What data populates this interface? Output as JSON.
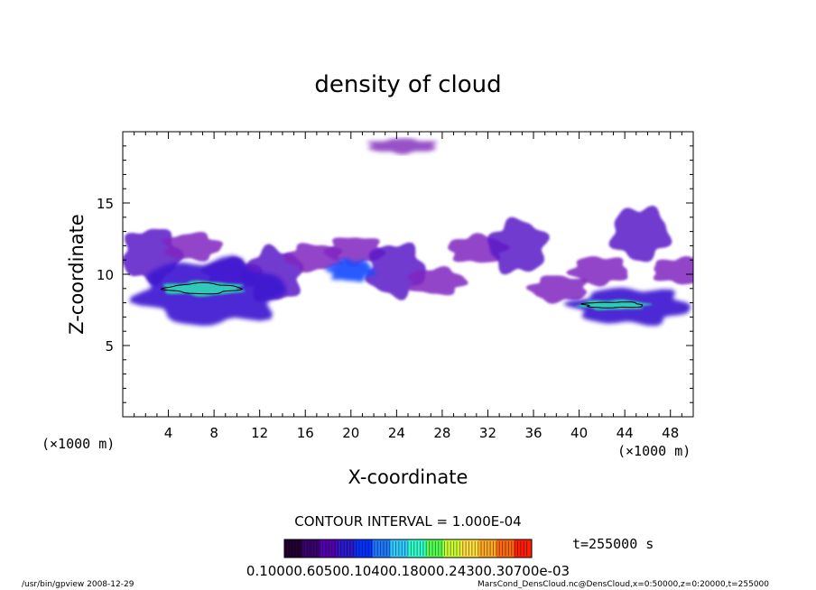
{
  "chart_data": {
    "type": "heatmap",
    "title": "density of cloud",
    "xlabel": "X-coordinate",
    "ylabel": "Z-coordinate",
    "x_unit": "(×1000 m)",
    "y_unit": "(×1000 m)",
    "xlim": [
      0,
      50
    ],
    "ylim": [
      0,
      20
    ],
    "x_ticks": [
      "4",
      "8",
      "12",
      "16",
      "20",
      "24",
      "28",
      "32",
      "36",
      "40",
      "44",
      "48"
    ],
    "y_ticks": [
      "5",
      "10",
      "15"
    ],
    "contour_interval": "CONTOUR INTERVAL = 1.000E-04",
    "time_label": "t=255000 s",
    "colorbar_labels": "0.10000.60500.10400.18000.24300.30700e-03",
    "colorbar_colors": [
      "#220033",
      "#3a006e",
      "#5500b0",
      "#2a1ad0",
      "#0033ff",
      "#1e7bff",
      "#33ccff",
      "#33ffcc",
      "#55ff55",
      "#ccff33",
      "#ffe040",
      "#ffaa22",
      "#ff6a10",
      "#ff2000"
    ],
    "regions": [
      {
        "kind": "faint",
        "x": [
          0,
          50
        ],
        "z": [
          8,
          16
        ]
      },
      {
        "kind": "band",
        "x": [
          1.5,
          14
        ],
        "z": [
          6.5,
          11
        ]
      },
      {
        "kind": "core",
        "x": [
          3.5,
          10.5
        ],
        "z": [
          8.5,
          9.5
        ],
        "peak": "medium"
      },
      {
        "kind": "band",
        "x": [
          39.5,
          49.5
        ],
        "z": [
          6.5,
          9
        ]
      },
      {
        "kind": "core",
        "x": [
          40,
          46
        ],
        "z": [
          7.5,
          8.2
        ],
        "peak": "medium"
      },
      {
        "kind": "faint",
        "x": [
          21.5,
          27.5
        ],
        "z": [
          18.5,
          19.5
        ]
      },
      {
        "kind": "medium",
        "x": [
          18,
          22
        ],
        "z": [
          9.5,
          11
        ]
      }
    ]
  },
  "footer": {
    "left": "/usr/bin/gpview   2008-12-29",
    "right": "MarsCond_DensCloud.nc@DensCloud,x=0:50000,z=0:20000,t=255000"
  }
}
